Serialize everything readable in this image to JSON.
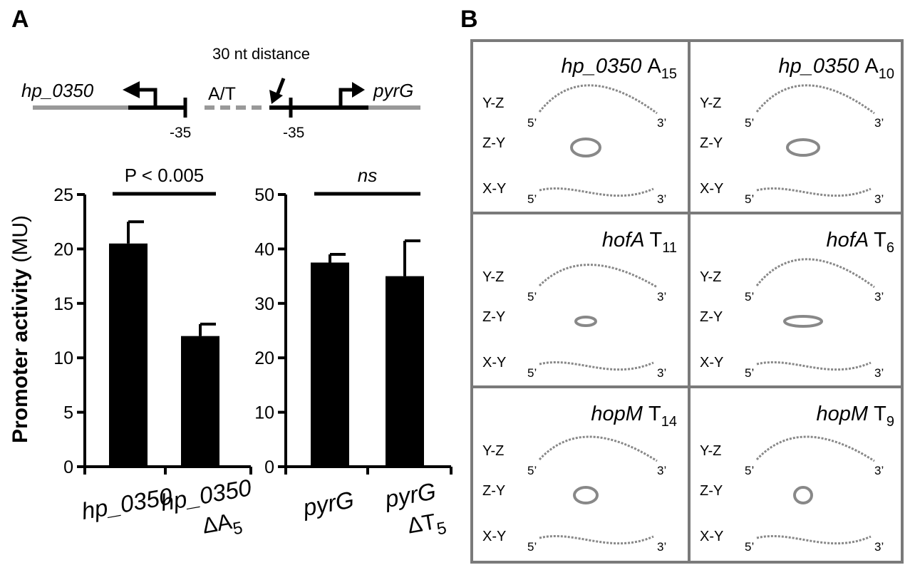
{
  "panel_a": {
    "label": "A",
    "diagram": {
      "left_gene": "hp_0350",
      "right_gene": "pyrG",
      "spacer_label": "A/T",
      "distance_label": "30 nt distance",
      "left_box": "-35",
      "right_box": "-35"
    }
  },
  "panel_b": {
    "label": "B",
    "view_labels": [
      "Y-Z",
      "Z-Y",
      "X-Y"
    ],
    "end5": "5’",
    "end3": "3’",
    "cells": [
      {
        "gene": "hp_0350",
        "base": "A",
        "sub": "15"
      },
      {
        "gene": "hp_0350",
        "base": "A",
        "sub": "10"
      },
      {
        "gene": "hofA",
        "base": "T",
        "sub": "11"
      },
      {
        "gene": "hofA",
        "base": "T",
        "sub": "6"
      },
      {
        "gene": "hopM",
        "base": "T",
        "sub": "14"
      },
      {
        "gene": "hopM",
        "base": "T",
        "sub": "9"
      }
    ]
  },
  "chart_data": [
    {
      "type": "bar",
      "ylabel_bold": "Promoter activity",
      "ylabel_unit": "(MU)",
      "ylim": [
        0,
        25
      ],
      "yticks": [
        0,
        5,
        10,
        15,
        20,
        25
      ],
      "categories": [
        {
          "main": "hp_0350",
          "delta": ""
        },
        {
          "main": "hp_0350",
          "delta": "ΔA",
          "sub": "5"
        }
      ],
      "values": [
        20.5,
        12.0
      ],
      "errors": [
        2.0,
        1.1
      ],
      "significance": "P < 0.005"
    },
    {
      "type": "bar",
      "ylim": [
        0,
        50
      ],
      "yticks": [
        0,
        10,
        20,
        30,
        40,
        50
      ],
      "categories": [
        {
          "main": "pyrG",
          "delta": ""
        },
        {
          "main": "pyrG",
          "delta": "ΔT",
          "sub": "5"
        }
      ],
      "values": [
        37.5,
        35.0
      ],
      "errors": [
        1.5,
        6.5
      ],
      "significance": "ns"
    }
  ]
}
